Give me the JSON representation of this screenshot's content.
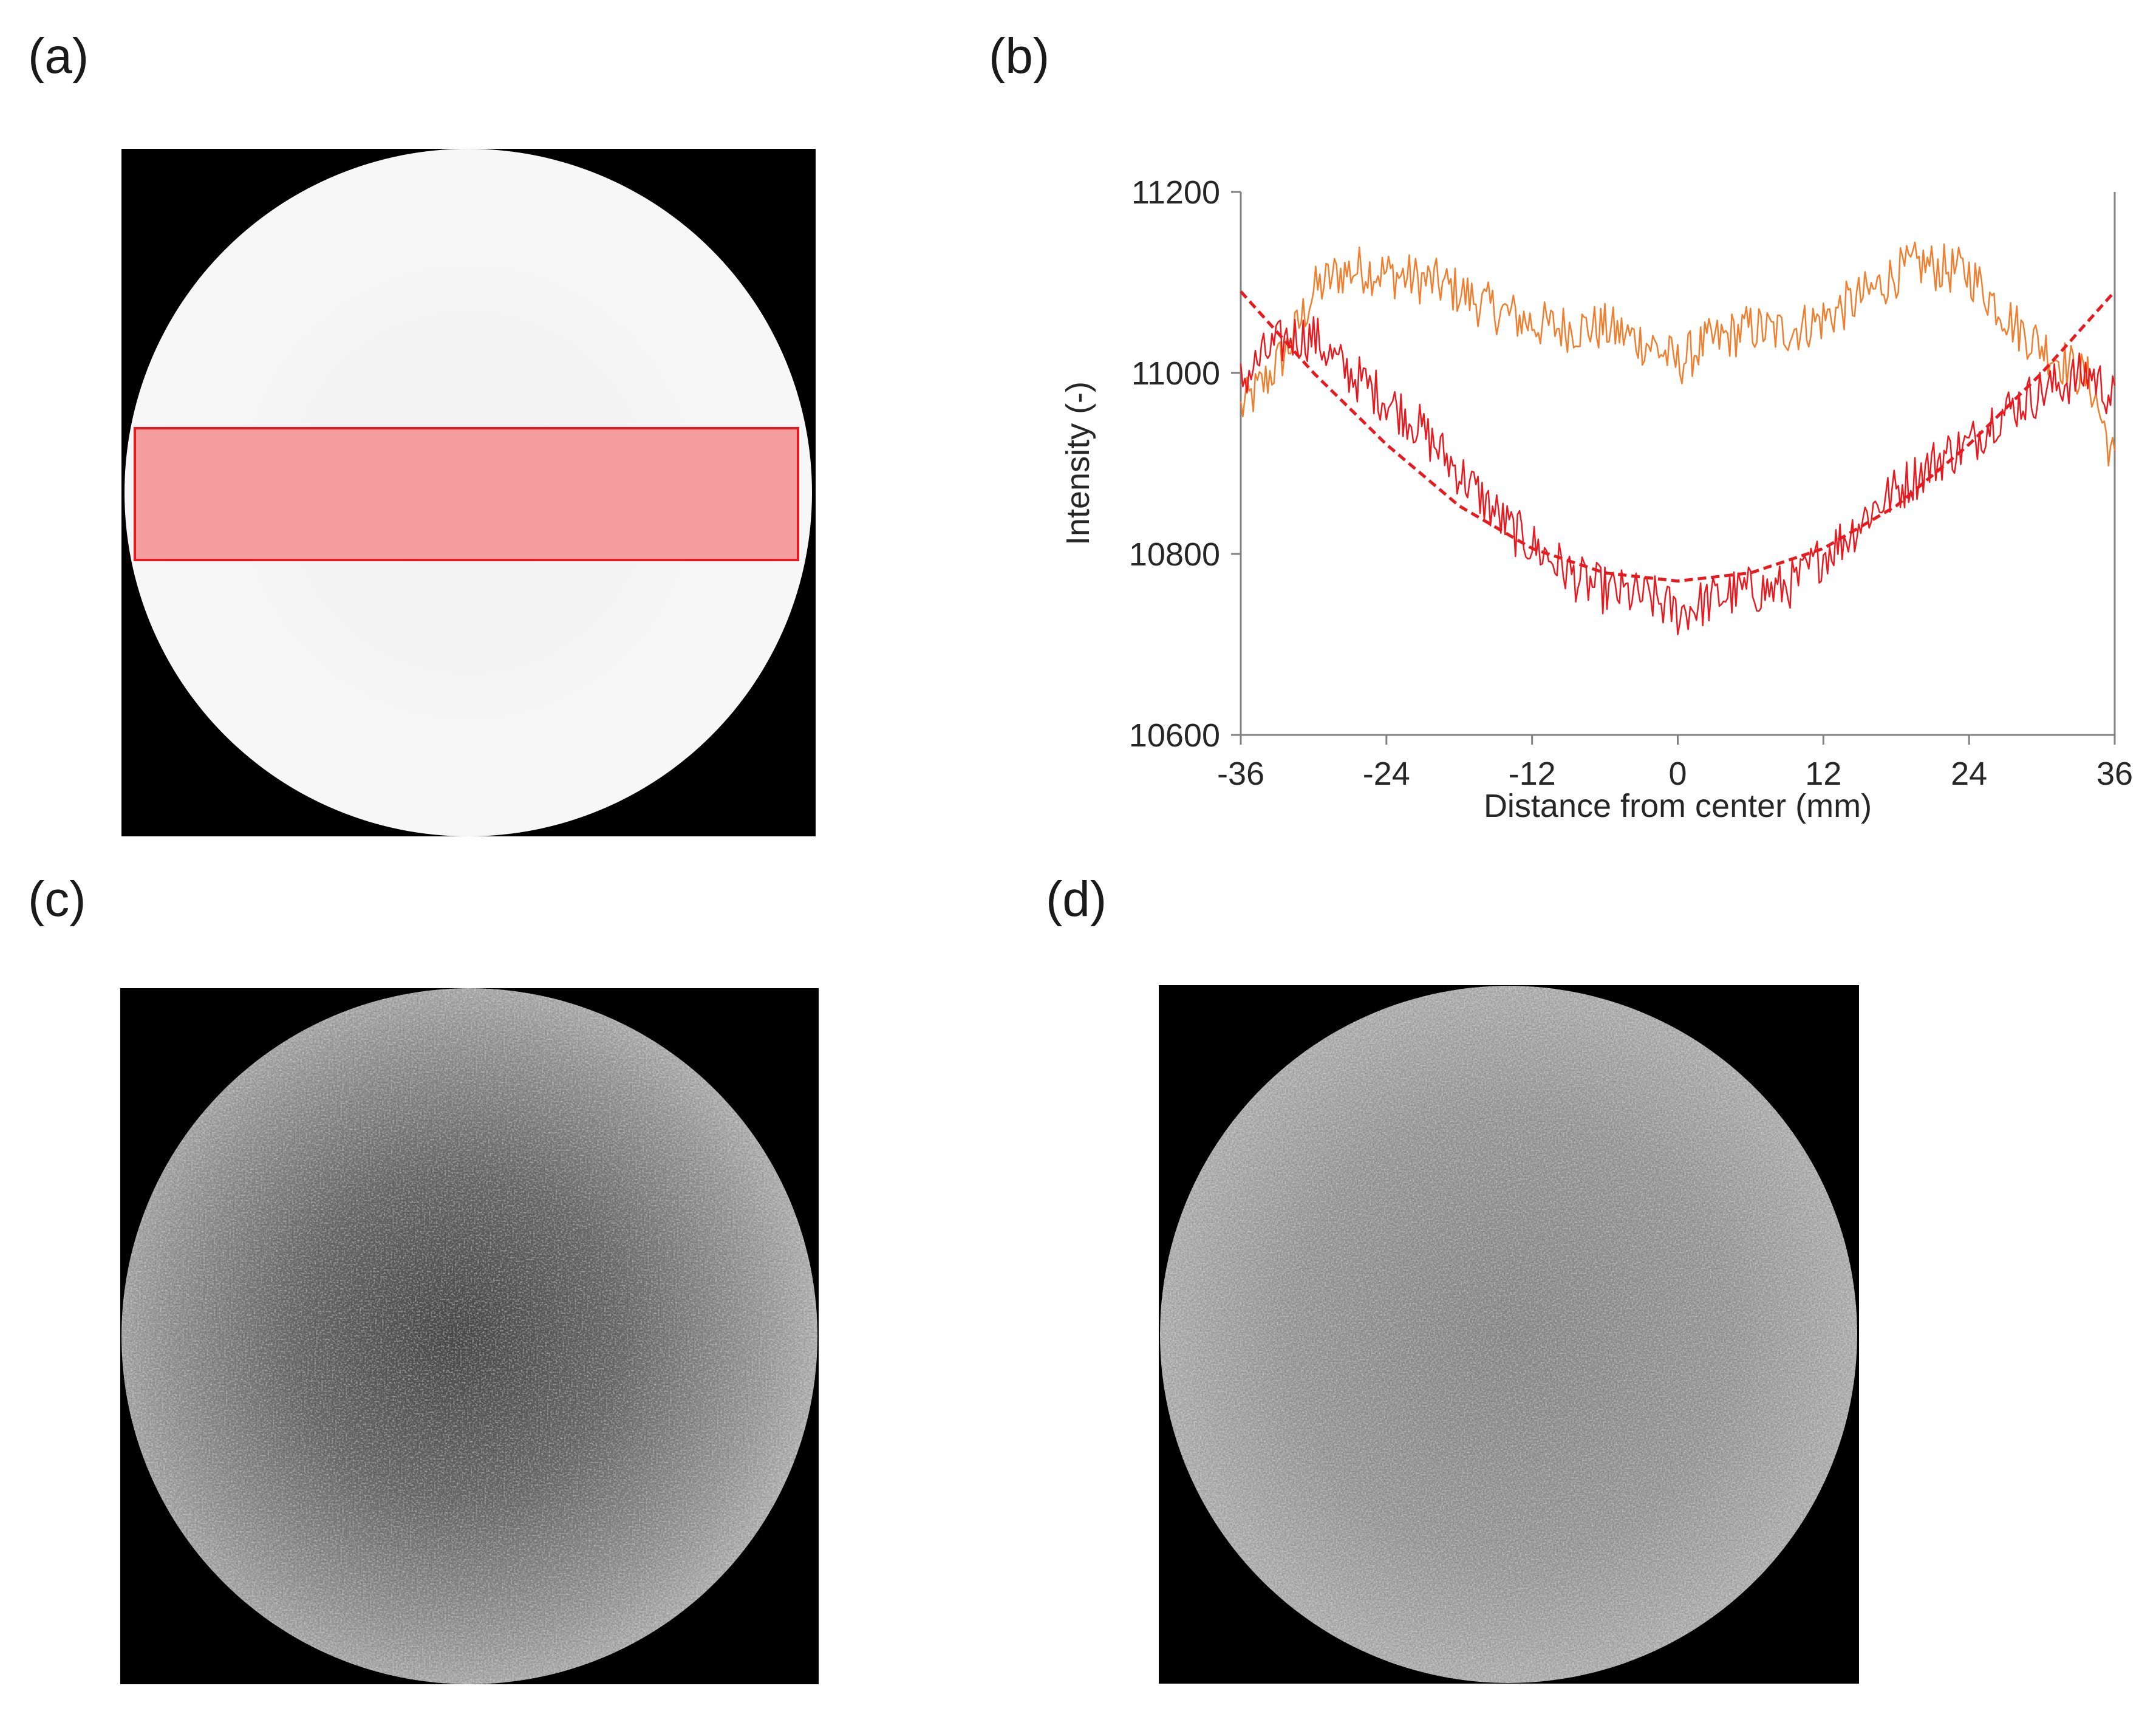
{
  "panels": {
    "a": {
      "label": "(a)"
    },
    "b": {
      "label": "(b)"
    },
    "c": {
      "label": "(c)"
    },
    "d": {
      "label": "(d)"
    }
  },
  "colors": {
    "background": "#000000",
    "disk_uniform": "#f4f4f4",
    "roi_fill": "#f2989a",
    "roi_stroke": "#e8191f",
    "series_orange": "#ef7f2e",
    "series_red": "#e8191f",
    "axis": "#808080"
  },
  "chart_data": {
    "type": "line",
    "panel": "b",
    "xlabel": "Distance from center (mm)",
    "ylabel": "Intensity (-)",
    "xlim": [
      -36,
      36
    ],
    "ylim": [
      10600,
      11200
    ],
    "xticks": [
      -36,
      -24,
      -12,
      0,
      12,
      24,
      36
    ],
    "yticks": [
      10600,
      10800,
      11000,
      11200
    ],
    "xtick_labels": [
      "-36",
      "-24",
      "-12",
      "0",
      "12",
      "24",
      "36"
    ],
    "ytick_labels": [
      "10600",
      "10800",
      "11000",
      "11200"
    ],
    "grid": false,
    "legend": "none",
    "series": [
      {
        "name": "orange profile",
        "style": "solid-noisy",
        "color": "#ef7f2e",
        "x": [
          -36,
          -34,
          -32,
          -30,
          -28,
          -26,
          -24,
          -22,
          -20,
          -18,
          -16,
          -14,
          -12,
          -10,
          -8,
          -6,
          -4,
          -2,
          0,
          2,
          4,
          6,
          8,
          10,
          12,
          14,
          16,
          18,
          20,
          22,
          24,
          26,
          28,
          30,
          32,
          34,
          36
        ],
        "y": [
          10960,
          10990,
          11030,
          11090,
          11110,
          11115,
          11110,
          11105,
          11100,
          11090,
          11075,
          11065,
          11055,
          11050,
          11050,
          11050,
          11040,
          11030,
          11010,
          11030,
          11040,
          11050,
          11045,
          11050,
          11060,
          11075,
          11090,
          11110,
          11120,
          11115,
          11110,
          11080,
          11050,
          11030,
          11010,
          10990,
          10900
        ]
      },
      {
        "name": "red profile",
        "style": "solid-noisy",
        "color": "#e8191f",
        "x": [
          -36,
          -34,
          -32,
          -30,
          -28,
          -26,
          -24,
          -22,
          -20,
          -18,
          -16,
          -14,
          -12,
          -10,
          -8,
          -6,
          -4,
          -2,
          0,
          2,
          4,
          6,
          8,
          10,
          12,
          14,
          16,
          18,
          20,
          22,
          24,
          26,
          28,
          30,
          32,
          34,
          36
        ],
        "y": [
          10990,
          11020,
          11040,
          11040,
          11010,
          10990,
          10970,
          10950,
          10920,
          10890,
          10860,
          10830,
          10810,
          10790,
          10770,
          10760,
          10755,
          10750,
          10735,
          10745,
          10755,
          10760,
          10760,
          10770,
          10800,
          10820,
          10850,
          10870,
          10890,
          10910,
          10920,
          10950,
          10965,
          10980,
          10990,
          11000,
          10970
        ]
      },
      {
        "name": "parabolic fit",
        "style": "dashed",
        "color": "#e8191f",
        "x": [
          -36,
          -30,
          -24,
          -18,
          -12,
          -6,
          0,
          6,
          12,
          18,
          24,
          30,
          36
        ],
        "y": [
          11090,
          11000,
          10921,
          10853,
          10806,
          10779,
          10770,
          10779,
          10806,
          10853,
          10921,
          11000,
          11090
        ]
      }
    ]
  }
}
